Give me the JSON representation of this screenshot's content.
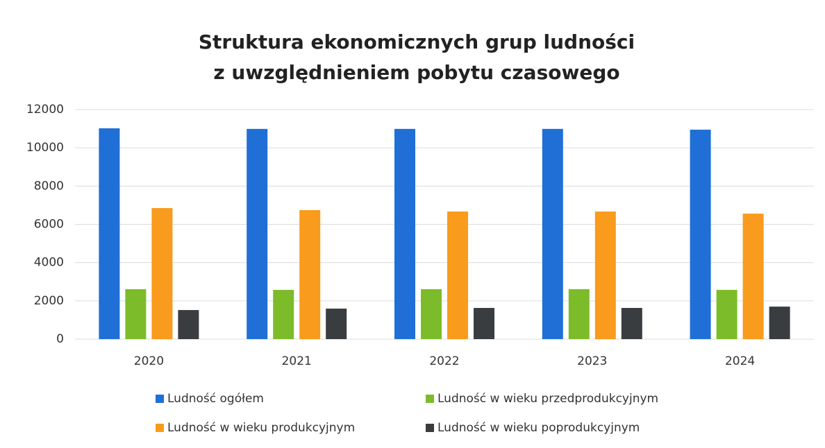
{
  "chart_data": {
    "type": "bar",
    "title": [
      "Struktura ekonomicznych grup ludności",
      "z uwzględnieniem pobytu czasowego"
    ],
    "categories": [
      "2020",
      "2021",
      "2022",
      "2023",
      "2024"
    ],
    "series": [
      {
        "name": "Ludność ogółem",
        "color": "#1f6fd6",
        "values": [
          11020,
          10990,
          10990,
          10990,
          10950
        ]
      },
      {
        "name": "Ludność w wieku przedprodukcyjnym",
        "color": "#7cbc2a",
        "values": [
          2610,
          2575,
          2610,
          2610,
          2575
        ]
      },
      {
        "name": "Ludność w wieku produkcyjnym",
        "color": "#f99b1c",
        "values": [
          6850,
          6745,
          6670,
          6670,
          6560
        ]
      },
      {
        "name": "Ludność w wieku poprodukcyjnym",
        "color": "#3a3d40",
        "values": [
          1520,
          1595,
          1630,
          1630,
          1700
        ]
      }
    ],
    "ylim": [
      0,
      12000
    ],
    "yticks": [
      0,
      2000,
      4000,
      6000,
      8000,
      10000,
      12000
    ],
    "grid": true,
    "legend": "bottom"
  }
}
